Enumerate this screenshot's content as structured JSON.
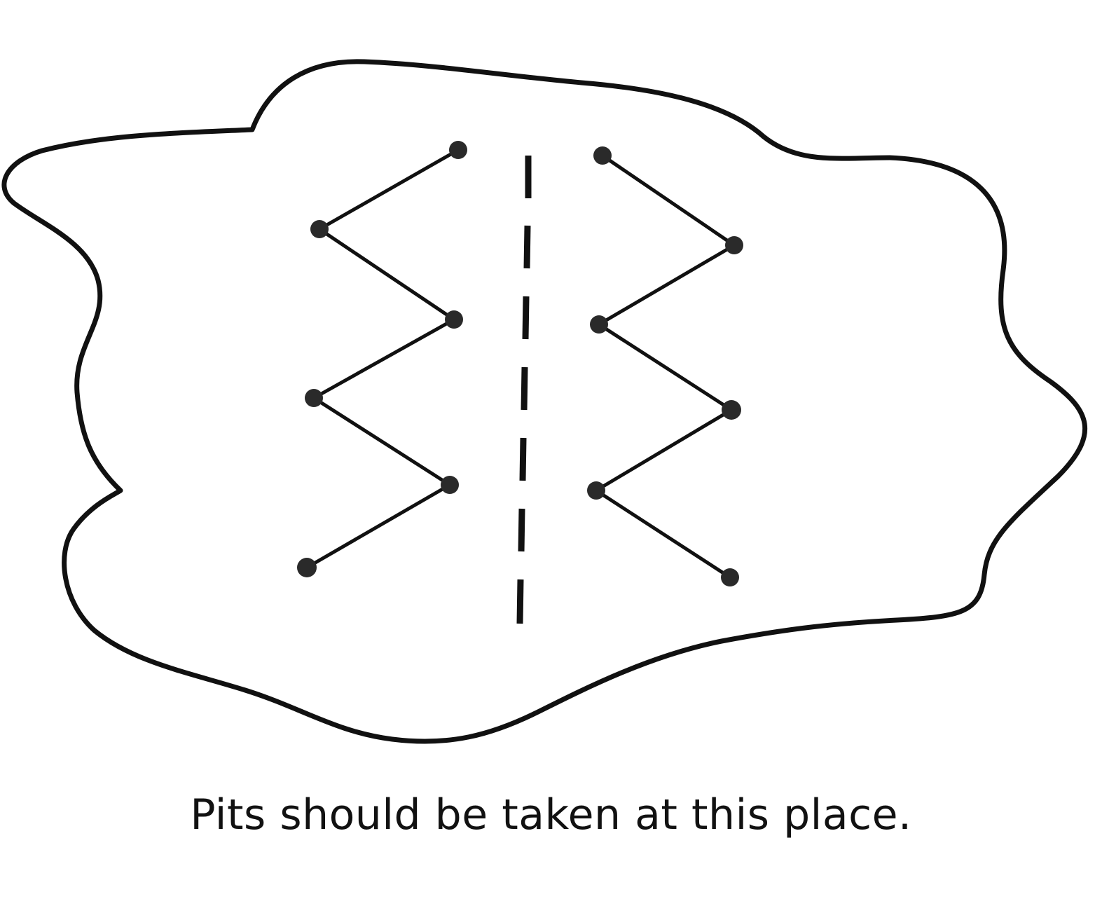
{
  "caption": "Pits should be taken at this place.",
  "colors": {
    "ink": "#111111",
    "dot": "#2a2a2a",
    "background": "#ffffff"
  }
}
